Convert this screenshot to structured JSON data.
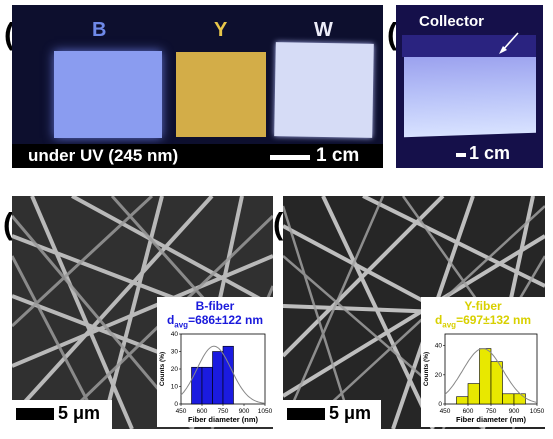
{
  "panels": {
    "a": {
      "label": "(a)",
      "swatches": [
        {
          "label": "B",
          "label_color": "#6f89e8",
          "fill": "#8a9cf0"
        },
        {
          "label": "Y",
          "label_color": "#e8c64a",
          "fill": "#d8b24a"
        },
        {
          "label": "W",
          "label_color": "#e8e8f8",
          "fill": "#d6dcf6"
        }
      ],
      "caption": "under UV (245 nm)",
      "scale": "1 cm"
    },
    "b": {
      "label": "(b)",
      "annotation": "Collector",
      "scale": "1 cm"
    },
    "c": {
      "label": "(c)",
      "scale": "5 μm",
      "inset": {
        "title": "B-fiber",
        "avg_prefix": "d",
        "avg_sub": "avg",
        "avg_value": "=686±122 nm",
        "color": "#1a1adb"
      }
    },
    "d": {
      "label": "(d)",
      "scale": "5 μm",
      "inset": {
        "title": "Y-fiber",
        "avg_prefix": "d",
        "avg_sub": "avg",
        "avg_value": "=697±132 nm",
        "color": "#d8d000"
      }
    }
  },
  "chart_data": [
    {
      "type": "bar",
      "title": "",
      "xlabel": "Fiber diameter (nm)",
      "ylabel": "Counts (%)",
      "bin_edges": [
        450,
        525,
        600,
        675,
        750,
        825,
        900,
        975,
        1050
      ],
      "values": [
        0,
        21,
        21,
        30,
        33,
        0,
        0,
        0
      ],
      "xticks": [
        450,
        600,
        750,
        900,
        1050
      ],
      "yticks": [
        0,
        10,
        20,
        30,
        40
      ],
      "ylim": [
        0,
        40
      ],
      "colors": {
        "bar": "#1b1be0",
        "fit": "#888888"
      },
      "fit": {
        "type": "gaussian",
        "mean": 686,
        "sd": 122
      }
    },
    {
      "type": "bar",
      "title": "",
      "xlabel": "Fiber diameter (nm)",
      "ylabel": "Counts (%)",
      "bin_edges": [
        450,
        525,
        600,
        675,
        750,
        825,
        900,
        975,
        1050
      ],
      "values": [
        0,
        5,
        14,
        38,
        29,
        7,
        7,
        0
      ],
      "xticks": [
        450,
        600,
        750,
        900,
        1050
      ],
      "yticks": [
        0,
        20,
        40
      ],
      "ylim": [
        0,
        48
      ],
      "colors": {
        "bar": "#e8e800",
        "fit": "#888888"
      },
      "fit": {
        "type": "gaussian",
        "mean": 697,
        "sd": 132
      }
    }
  ]
}
